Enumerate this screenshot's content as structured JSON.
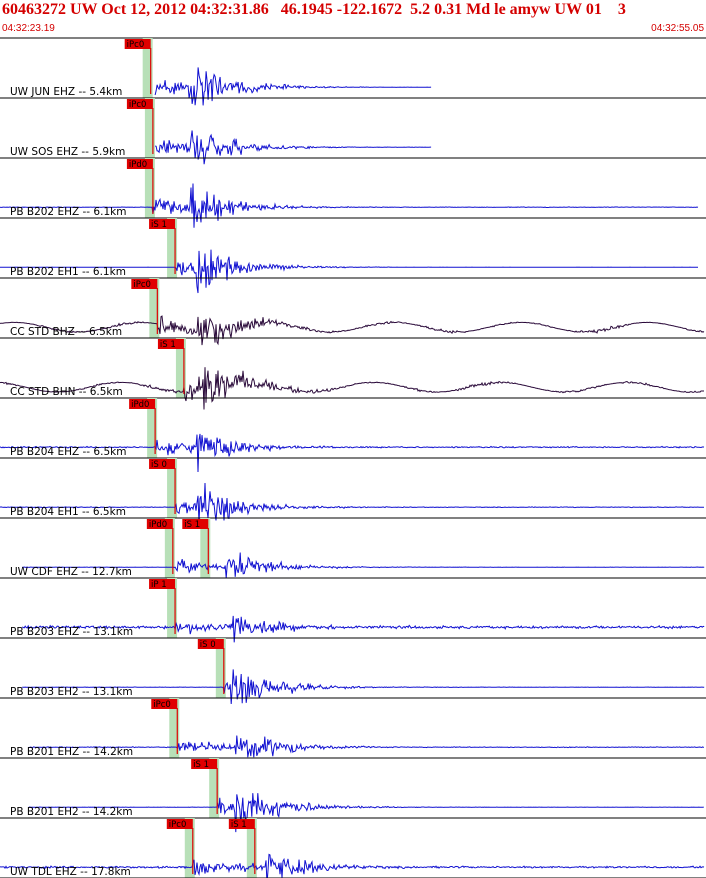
{
  "header": {
    "title": "60463272 UW Oct 12, 2012 04:32:31.86   46.1945 -122.1672  5.2 0.31 Md le amyw UW 01    3",
    "time_start": "04:32:23.19",
    "time_end": "04:32:55.05"
  },
  "colors": {
    "wave_blue": "#1010d0",
    "wave_dark": "#2a0a3a",
    "pick_red": "#e00000",
    "window_green": "#b8e0b8",
    "border": "#000000"
  },
  "chart_data": {
    "type": "line",
    "title": "60463272 UW Oct 12, 2012 04:32:31.86   46.1945 -122.1672  5.2 0.31 Md le amyw UW 01    3",
    "x_range_seconds": [
      0,
      31.86
    ],
    "traces": [
      {
        "label": "UW JUN EHZ -- 5.4km",
        "picks": [
          {
            "tag": "iPc0",
            "t": 6.8
          }
        ],
        "color": "blue",
        "noise": 0.02,
        "amp": 1.1,
        "start": 7.0,
        "end": 19.5,
        "s_onset": 8.5
      },
      {
        "label": "UW SOS EHZ -- 5.9km",
        "picks": [
          {
            "tag": "iPc0",
            "t": 6.9
          }
        ],
        "color": "blue",
        "noise": 0.05,
        "amp": 1.0,
        "start": 7.0,
        "end": 19.5,
        "s_onset": 8.6
      },
      {
        "label": "PB B202 EHZ -- 6.1km",
        "picks": [
          {
            "tag": "iPd0",
            "t": 6.9
          }
        ],
        "color": "blue",
        "noise": 0.08,
        "amp": 1.0,
        "start": 0.0,
        "end": 31.5,
        "s_onset": 8.6
      },
      {
        "label": "PB B202 EH1 -- 6.1km",
        "picks": [
          {
            "tag": "iS 1",
            "t": 7.9
          }
        ],
        "color": "blue",
        "noise": 0.02,
        "amp": 1.0,
        "start": 0.0,
        "end": 31.5,
        "s_onset": 8.8
      },
      {
        "label": "CC STD BHZ -- 6.5km",
        "picks": [
          {
            "tag": "iPc0",
            "t": 7.1
          }
        ],
        "color": "dark",
        "noise": 0.25,
        "amp": 1.0,
        "start": 0.0,
        "end": 31.8,
        "s_onset": 8.9
      },
      {
        "label": "CC STD BHN -- 6.5km",
        "picks": [
          {
            "tag": "iS 1",
            "t": 8.3
          }
        ],
        "color": "dark",
        "noise": 0.3,
        "amp": 1.2,
        "start": 0.0,
        "end": 31.8,
        "s_onset": 8.9
      },
      {
        "label": "PB B204 EHZ -- 6.5km",
        "picks": [
          {
            "tag": "iPd0",
            "t": 7.0
          }
        ],
        "color": "blue",
        "noise": 0.18,
        "amp": 1.0,
        "start": 0.0,
        "end": 31.8,
        "s_onset": 8.8
      },
      {
        "label": "PB B204 EH1 -- 6.5km",
        "picks": [
          {
            "tag": "iS 0",
            "t": 7.9
          }
        ],
        "color": "blue",
        "noise": 0.1,
        "amp": 1.0,
        "start": 0.0,
        "end": 31.8,
        "s_onset": 8.8
      },
      {
        "label": "UW CDF EHZ -- 12.7km",
        "picks": [
          {
            "tag": "iPd0",
            "t": 7.8
          },
          {
            "tag": "iS 1",
            "t": 9.4
          }
        ],
        "color": "blue",
        "noise": 0.05,
        "amp": 0.9,
        "start": 1.0,
        "end": 31.8,
        "s_onset": 10.2
      },
      {
        "label": "PB B203 EHZ -- 13.1km",
        "picks": [
          {
            "tag": "iP 1",
            "t": 7.9
          }
        ],
        "color": "blue",
        "noise": 0.35,
        "amp": 0.8,
        "start": 1.0,
        "end": 31.8,
        "s_onset": 10.4
      },
      {
        "label": "PB B203 EH2 -- 13.1km",
        "picks": [
          {
            "tag": "iS 0",
            "t": 10.1
          }
        ],
        "color": "blue",
        "noise": 0.05,
        "amp": 0.9,
        "start": 1.0,
        "end": 31.8,
        "s_onset": 10.4
      },
      {
        "label": "PB B201 EHZ -- 14.2km",
        "picks": [
          {
            "tag": "iPc0",
            "t": 8.0
          }
        ],
        "color": "blue",
        "noise": 0.1,
        "amp": 1.0,
        "start": 1.3,
        "end": 31.8,
        "s_onset": 10.6
      },
      {
        "label": "PB B201 EH2 -- 14.2km",
        "picks": [
          {
            "tag": "iS 1",
            "t": 9.8
          }
        ],
        "color": "blue",
        "noise": 0.05,
        "amp": 1.0,
        "start": 1.3,
        "end": 31.8,
        "s_onset": 10.6
      },
      {
        "label": "UW TDL EHZ -- 17.8km",
        "picks": [
          {
            "tag": "iPc0",
            "t": 8.7
          },
          {
            "tag": "iS 1",
            "t": 11.5
          }
        ],
        "color": "blue",
        "noise": 0.25,
        "amp": 1.0,
        "start": 0.0,
        "end": 31.8,
        "s_onset": 12.0
      }
    ]
  }
}
